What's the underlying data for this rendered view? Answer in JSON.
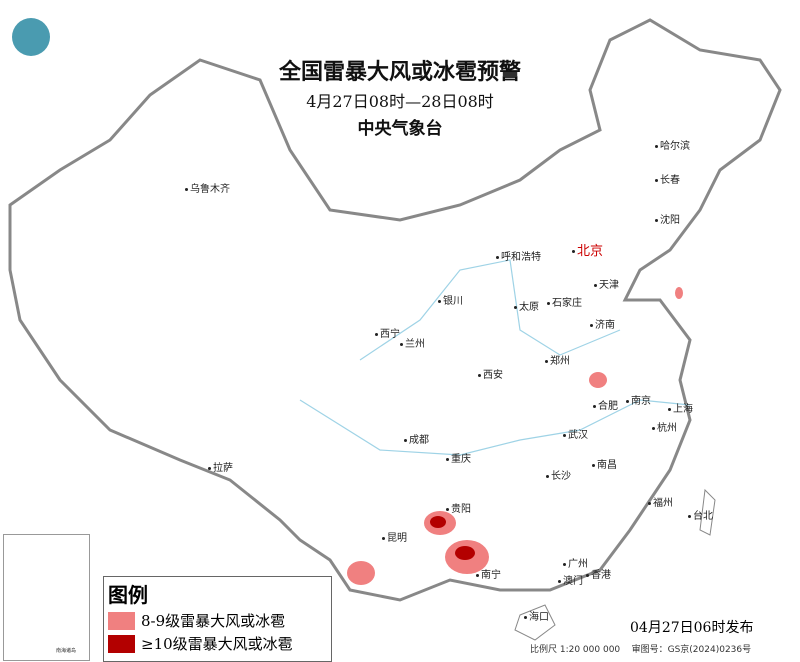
{
  "header": {
    "title": "全国雷暴大风或冰雹预警",
    "period": "4月27日08时—28日08时",
    "issuer": "中央气象台"
  },
  "cities": [
    "乌鲁木齐",
    "哈尔滨",
    "长春",
    "沈阳",
    "北京",
    "天津",
    "呼和浩特",
    "石家庄",
    "太原",
    "银川",
    "济南",
    "西宁",
    "兰州",
    "郑州",
    "西安",
    "合肥",
    "南京",
    "上海",
    "杭州",
    "拉萨",
    "成都",
    "武汉",
    "重庆",
    "长沙",
    "南昌",
    "贵阳",
    "福州",
    "台北",
    "昆明",
    "南宁",
    "广州",
    "澳门",
    "香港",
    "海口"
  ],
  "legend": {
    "title": "图例",
    "items": [
      {
        "label": "8-9级雷暴大风或冰雹",
        "color": "#f08080"
      },
      {
        "label": "≥10级雷暴大风或冰雹",
        "color": "#b30000"
      }
    ]
  },
  "footer": {
    "issued": "04月27日06时发布",
    "scale": "比例尺 1:20 000 000",
    "review": "审图号：GS京(2024)0236号"
  },
  "inset": {
    "label": "南海诸岛"
  },
  "colors": {
    "level_8_9": "#f08080",
    "level_10": "#b30000",
    "border": "#888888",
    "river": "#9fd3e6"
  }
}
